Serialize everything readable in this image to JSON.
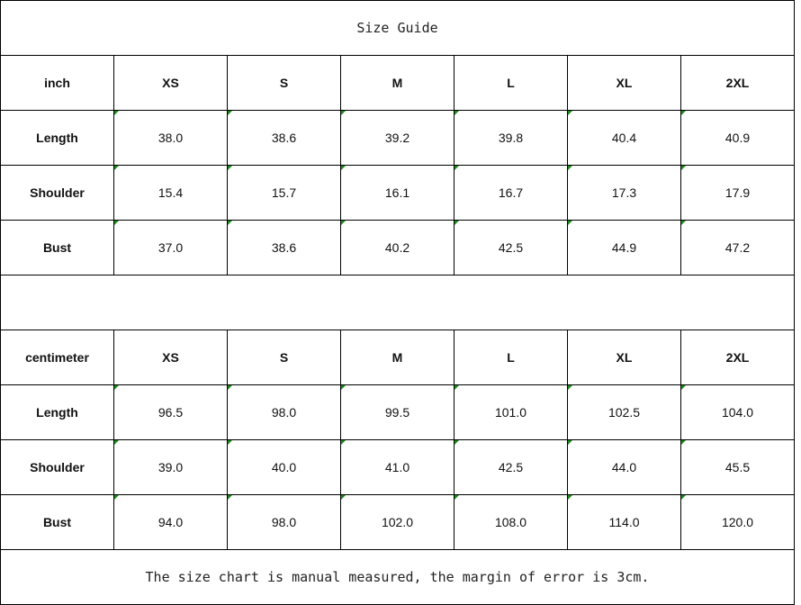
{
  "title": "Size Guide",
  "tables": [
    {
      "unit": "inch",
      "sizes": [
        "XS",
        "S",
        "M",
        "L",
        "XL",
        "2XL"
      ],
      "rows": [
        {
          "label": "Length",
          "values": [
            "38.0",
            "38.6",
            "39.2",
            "39.8",
            "40.4",
            "40.9"
          ]
        },
        {
          "label": "Shoulder",
          "values": [
            "15.4",
            "15.7",
            "16.1",
            "16.7",
            "17.3",
            "17.9"
          ]
        },
        {
          "label": "Bust",
          "values": [
            "37.0",
            "38.6",
            "40.2",
            "42.5",
            "44.9",
            "47.2"
          ]
        }
      ]
    },
    {
      "unit": "centimeter",
      "sizes": [
        "XS",
        "S",
        "M",
        "L",
        "XL",
        "2XL"
      ],
      "rows": [
        {
          "label": "Length",
          "values": [
            "96.5",
            "98.0",
            "99.5",
            "101.0",
            "102.5",
            "104.0"
          ]
        },
        {
          "label": "Shoulder",
          "values": [
            "39.0",
            "40.0",
            "41.0",
            "42.5",
            "44.0",
            "45.5"
          ]
        },
        {
          "label": "Bust",
          "values": [
            "94.0",
            "98.0",
            "102.0",
            "108.0",
            "114.0",
            "120.0"
          ]
        }
      ]
    }
  ],
  "note": "The size chart is manual measured, the margin of error is 3cm.",
  "colors": {
    "border": "#000000",
    "cell_marker": "#1a8a1a"
  }
}
